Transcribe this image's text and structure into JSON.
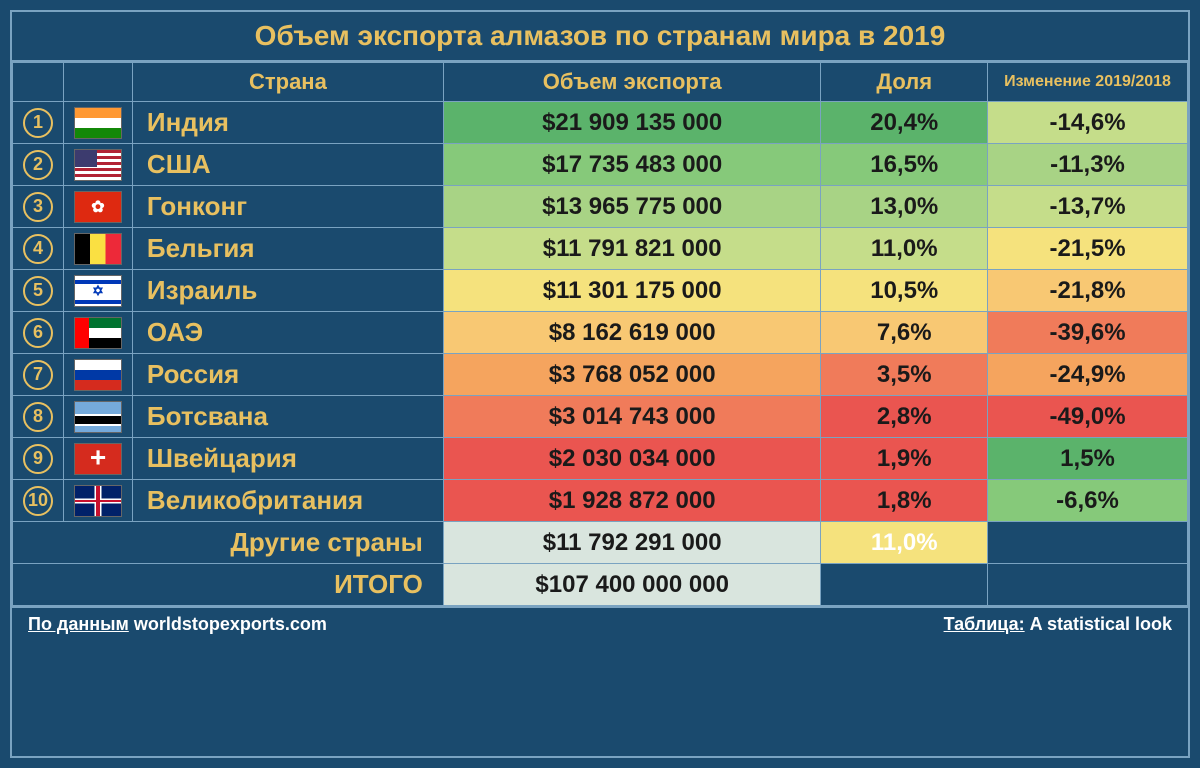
{
  "title": "Объем экспорта алмазов по странам мира в 2019",
  "columns": {
    "rank": "",
    "flag": "",
    "country": "Страна",
    "volume": "Объем экспорта",
    "share": "Доля",
    "change": "Изменение 2019/2018"
  },
  "colors": {
    "background": "#1a4a6e",
    "border": "#7aa3c1",
    "accent_text": "#e8c060",
    "cell_text": "#1a1a1a",
    "heat_green_dark": "#5bb36b",
    "heat_green": "#86c97a",
    "heat_green_light": "#a8d385",
    "heat_yellow_green": "#c5dd8a",
    "heat_yellow": "#f5e27d",
    "heat_orange_light": "#f8c873",
    "heat_orange": "#f5a45e",
    "heat_red_light": "#f07b5a",
    "heat_red": "#ea5550"
  },
  "rows": [
    {
      "rank": "1",
      "flag": "india",
      "country": "Индия",
      "volume": "$21 909 135 000",
      "share": "20,4%",
      "change": "-14,6%",
      "volume_color": "#5bb36b",
      "share_color": "#5bb36b",
      "change_color": "#c5dd8a"
    },
    {
      "rank": "2",
      "flag": "usa",
      "country": "США",
      "volume": "$17 735 483 000",
      "share": "16,5%",
      "change": "-11,3%",
      "volume_color": "#86c97a",
      "share_color": "#86c97a",
      "change_color": "#a8d385"
    },
    {
      "rank": "3",
      "flag": "hk",
      "country": "Гонконг",
      "volume": "$13 965 775 000",
      "share": "13,0%",
      "change": "-13,7%",
      "volume_color": "#a8d385",
      "share_color": "#a8d385",
      "change_color": "#c5dd8a"
    },
    {
      "rank": "4",
      "flag": "belgium",
      "country": "Бельгия",
      "volume": "$11 791 821 000",
      "share": "11,0%",
      "change": "-21,5%",
      "volume_color": "#c5dd8a",
      "share_color": "#c5dd8a",
      "change_color": "#f5e27d"
    },
    {
      "rank": "5",
      "flag": "israel",
      "country": "Израиль",
      "volume": "$11 301 175 000",
      "share": "10,5%",
      "change": "-21,8%",
      "volume_color": "#f5e27d",
      "share_color": "#f5e27d",
      "change_color": "#f8c873"
    },
    {
      "rank": "6",
      "flag": "uae",
      "country": "ОАЭ",
      "volume": "$8 162 619 000",
      "share": "7,6%",
      "change": "-39,6%",
      "volume_color": "#f8c873",
      "share_color": "#f8c873",
      "change_color": "#f07b5a"
    },
    {
      "rank": "7",
      "flag": "russia",
      "country": "Россия",
      "volume": "$3 768 052 000",
      "share": "3,5%",
      "change": "-24,9%",
      "volume_color": "#f5a45e",
      "share_color": "#f07b5a",
      "change_color": "#f5a45e"
    },
    {
      "rank": "8",
      "flag": "botswana",
      "country": "Ботсвана",
      "volume": "$3 014 743 000",
      "share": "2,8%",
      "change": "-49,0%",
      "volume_color": "#f07b5a",
      "share_color": "#ea5550",
      "change_color": "#ea5550"
    },
    {
      "rank": "9",
      "flag": "swiss",
      "country": "Швейцария",
      "volume": "$2 030 034 000",
      "share": "1,9%",
      "change": "1,5%",
      "volume_color": "#ea5550",
      "share_color": "#ea5550",
      "change_color": "#5bb36b"
    },
    {
      "rank": "10",
      "flag": "uk",
      "country": "Великобритания",
      "volume": "$1 928 872 000",
      "share": "1,8%",
      "change": "-6,6%",
      "volume_color": "#ea5550",
      "share_color": "#ea5550",
      "change_color": "#86c97a"
    }
  ],
  "summary": {
    "others_label": "Другие страны",
    "others_volume": "$11 792 291 000",
    "others_share": "11,0%",
    "total_label": "ИТОГО",
    "total_volume": "$107 400 000 000"
  },
  "footer": {
    "source_label": "По данным",
    "source_value": "worldstopexports.com",
    "table_label": "Таблица:",
    "table_value": "A statistical look"
  },
  "typography": {
    "title_fontsize": 28,
    "header_fontsize": 22,
    "cell_fontsize": 24,
    "country_fontsize": 26,
    "footer_fontsize": 18
  }
}
